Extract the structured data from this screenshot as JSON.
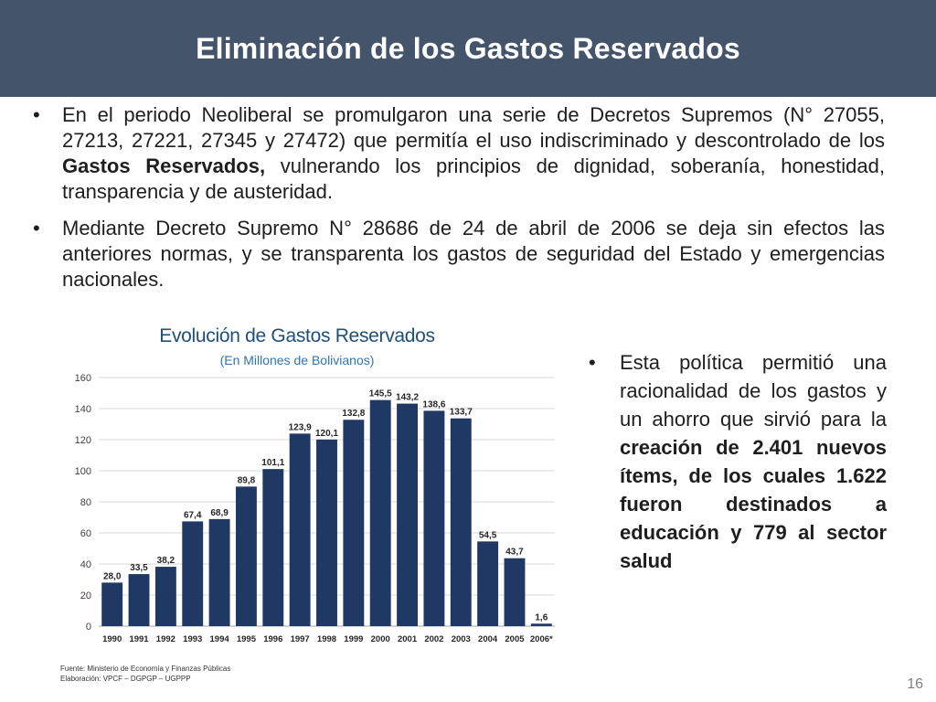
{
  "slide": {
    "title": "Eliminación de los Gastos Reservados",
    "page_number": "16"
  },
  "bullets": [
    {
      "parts": [
        {
          "text": "En el periodo Neoliberal se promulgaron una serie de Decretos Supremos (N° 27055, 27213, 27221, 27345 y 27472) que permitía el uso indiscriminado y descontrolado de los ",
          "bold": false
        },
        {
          "text": "Gastos Reservados,",
          "bold": true
        },
        {
          "text": " vulnerando los principios de dignidad, soberanía, honestidad, transparencia y de austeridad.",
          "bold": false
        }
      ]
    },
    {
      "parts": [
        {
          "text": " Mediante Decreto Supremo N° 28686 de 24 de abril de 2006 se deja sin efectos las anteriores normas, y se transparenta los gastos de seguridad del Estado y emergencias nacionales.",
          "bold": false
        }
      ]
    }
  ],
  "side_note": {
    "parts": [
      {
        "text": "Esta política permitió una racionalidad de los gastos y un ahorro que sirvió para la ",
        "bold": false
      },
      {
        "text": "creación de 2.401 nuevos ítems, de los cuales 1.622 fueron destinados a educación y 779 al sector salud",
        "bold": true
      }
    ]
  },
  "chart_data": {
    "type": "bar",
    "title": "Evolución de Gastos Reservados",
    "subtitle": "(En Millones de Bolivianos)",
    "categories": [
      "1990",
      "1991",
      "1992",
      "1993",
      "1994",
      "1995",
      "1996",
      "1997",
      "1998",
      "1999",
      "2000",
      "2001",
      "2002",
      "2003",
      "2004",
      "2005",
      "2006*"
    ],
    "values": [
      28.0,
      33.5,
      38.2,
      67.4,
      68.9,
      89.8,
      101.1,
      123.9,
      120.1,
      132.8,
      145.5,
      143.2,
      138.6,
      133.7,
      54.5,
      43.7,
      1.6
    ],
    "value_labels": [
      "28,0",
      "33,5",
      "38,2",
      "67,4",
      "68,9",
      "89,8",
      "101,1",
      "123,9",
      "120,1",
      "132,8",
      "145,5",
      "143,2",
      "138,6",
      "133,7",
      "54,5",
      "43,7",
      "1,6"
    ],
    "y_ticks": [
      0,
      20,
      40,
      60,
      80,
      100,
      120,
      140,
      160
    ],
    "ylim": [
      0,
      160
    ],
    "grid": true,
    "bar_color": "#1f3864"
  },
  "source": {
    "line1": "Fuente: Ministerio de Economía y Finanzas Públicas",
    "line2": "Elaboración: VPCF – DGPGP – UGPPP"
  }
}
